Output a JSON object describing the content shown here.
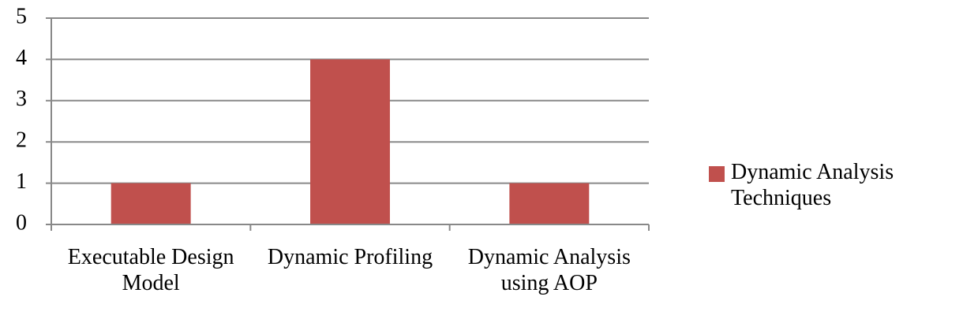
{
  "chart_data": {
    "type": "bar",
    "categories": [
      "Executable Design Model",
      "Dynamic Profiling",
      "Dynamic Analysis using AOP"
    ],
    "series": [
      {
        "name": "Dynamic Analysis Techniques",
        "color": "#c0504d",
        "values": [
          1,
          4,
          1
        ]
      }
    ],
    "ylim": [
      0,
      5
    ],
    "yticks": [
      0,
      1,
      2,
      3,
      4,
      5
    ],
    "grid": true,
    "legend": "right"
  }
}
